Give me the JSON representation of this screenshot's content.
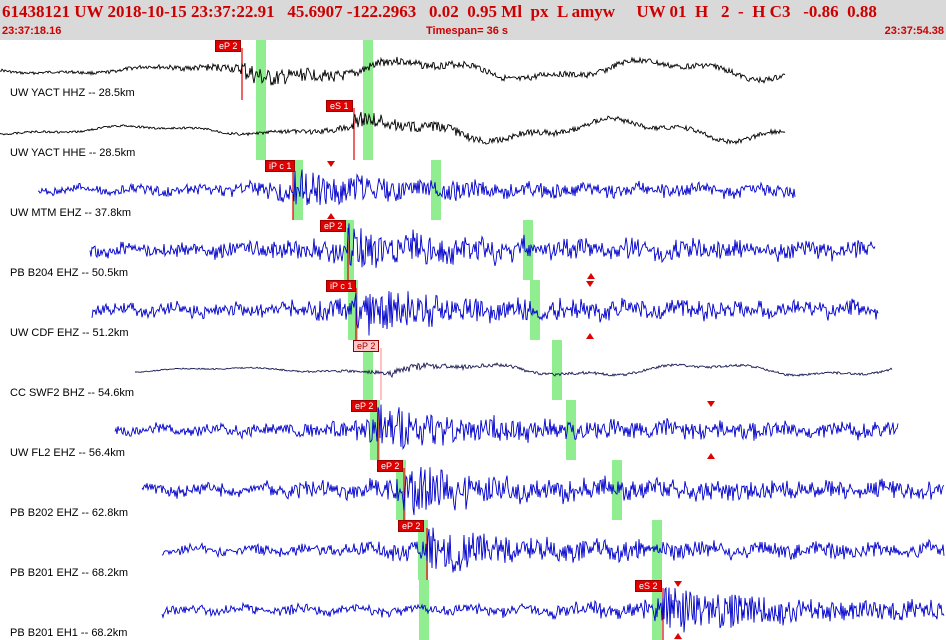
{
  "header": {
    "title": "61438121 UW 2018-10-15 23:37:22.91   45.6907 -122.2963   0.02  0.95 Ml  px  L amyw     UW 01  H   2  -  H C3   -0.86  0.88",
    "start_time": "23:37:18.16",
    "timespan": "Timespan=  36 s",
    "end_time": "23:37:54.38"
  },
  "colors": {
    "trace_black": "#000000",
    "trace_blue": "#0000cc",
    "trace_navy": "#1a1a55",
    "pick_red": "#e00000",
    "window_green": "#90ee90"
  },
  "channels": [
    {
      "label": "UW YACT HHZ -- 28.5km",
      "pick": "eP 2",
      "pick_style": "solid",
      "color": "black"
    },
    {
      "label": "UW YACT HHE -- 28.5km",
      "pick": "eS 1",
      "pick_style": "solid",
      "color": "black"
    },
    {
      "label": "UW MTM EHZ -- 37.8km",
      "pick": "iP c 1",
      "pick_style": "solid",
      "color": "blue"
    },
    {
      "label": "PB B204 EHZ -- 50.5km",
      "pick": "eP 2",
      "pick_style": "solid",
      "color": "blue"
    },
    {
      "label": "UW CDF EHZ -- 51.2km",
      "pick": "iP c 1",
      "pick_style": "solid",
      "color": "blue"
    },
    {
      "label": "CC SWF2 BHZ -- 54.6km",
      "pick": "eP 2",
      "pick_style": "light",
      "color": "navy"
    },
    {
      "label": "UW FL2 EHZ -- 56.4km",
      "pick": "eP 2",
      "pick_style": "solid",
      "color": "blue"
    },
    {
      "label": "PB B202 EHZ -- 62.8km",
      "pick": "eP 2",
      "pick_style": "solid",
      "color": "blue"
    },
    {
      "label": "PB B201 EHZ -- 68.2km",
      "pick": "eP 2",
      "pick_style": "solid",
      "color": "blue"
    },
    {
      "label": "PB B201 EH1 -- 68.2km",
      "pick": "eS 2",
      "pick_style": "solid",
      "color": "blue"
    }
  ]
}
